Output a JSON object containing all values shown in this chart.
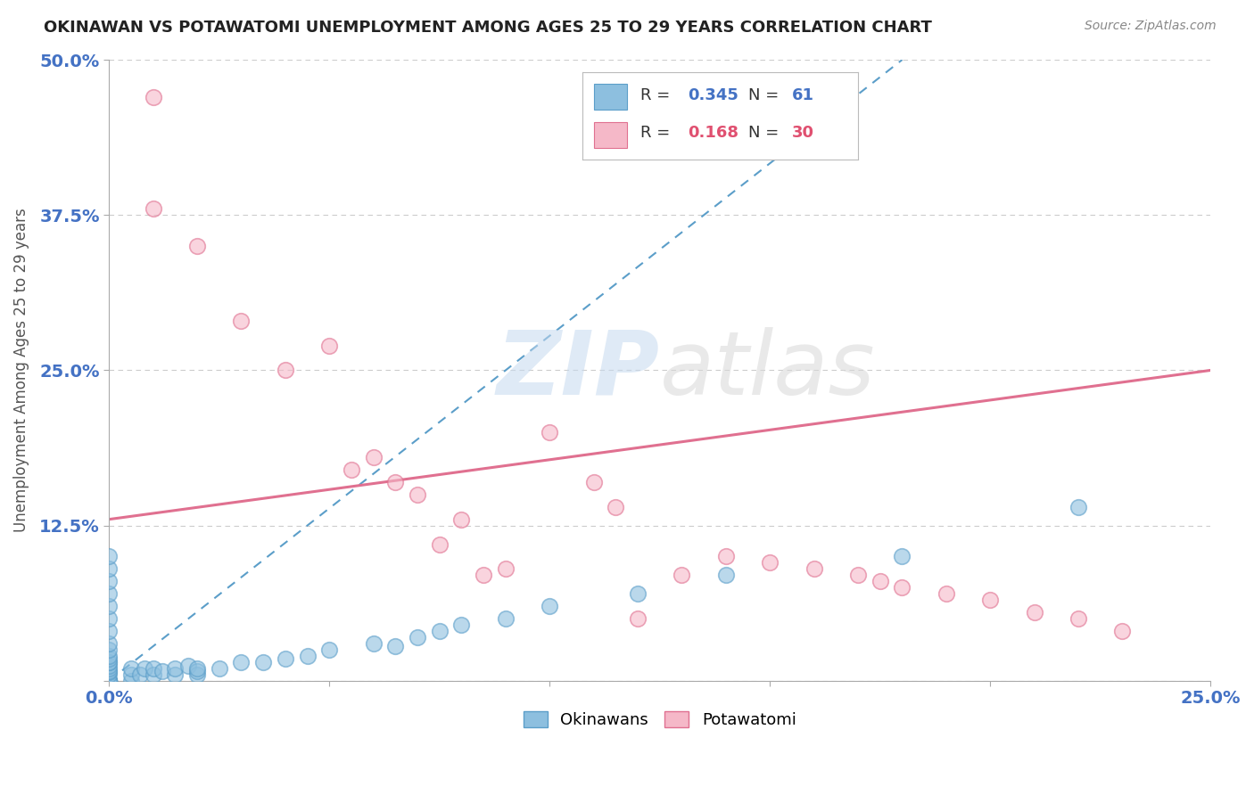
{
  "title": "OKINAWAN VS POTAWATOMI UNEMPLOYMENT AMONG AGES 25 TO 29 YEARS CORRELATION CHART",
  "source": "Source: ZipAtlas.com",
  "ylabel": "Unemployment Among Ages 25 to 29 years",
  "xlim": [
    0.0,
    0.25
  ],
  "ylim": [
    0.0,
    0.5
  ],
  "xticks": [
    0.0,
    0.05,
    0.1,
    0.15,
    0.2,
    0.25
  ],
  "yticks": [
    0.0,
    0.125,
    0.25,
    0.375,
    0.5
  ],
  "xtick_labels": [
    "0.0%",
    "",
    "",
    "",
    "",
    "25.0%"
  ],
  "ytick_labels": [
    "",
    "12.5%",
    "25.0%",
    "37.5%",
    "50.0%"
  ],
  "okinawan_color": "#8dbfdf",
  "okinawan_edge_color": "#5b9ec9",
  "potawatomi_color": "#f5b8c8",
  "potawatomi_edge_color": "#e07090",
  "okinawan_R": 0.345,
  "okinawan_N": 61,
  "potawatomi_R": 0.168,
  "potawatomi_N": 30,
  "background_color": "#ffffff",
  "grid_color": "#cccccc",
  "title_color": "#222222",
  "axis_label_color": "#555555",
  "tick_color": "#4472c4",
  "watermark_zip_color": "#c5d9ef",
  "watermark_atlas_color": "#d8d8d8",
  "legend_r_color_okinawan": "#4472c4",
  "legend_r_color_potawatomi": "#e05070",
  "okinawan_line_color": "#5b9ec9",
  "potawatomi_line_color": "#e07090",
  "okinawan_points_x": [
    0.0,
    0.0,
    0.0,
    0.0,
    0.0,
    0.0,
    0.0,
    0.0,
    0.0,
    0.0,
    0.0,
    0.0,
    0.0,
    0.0,
    0.0,
    0.0,
    0.0,
    0.0,
    0.0,
    0.0,
    0.0,
    0.0,
    0.0,
    0.0,
    0.0,
    0.0,
    0.0,
    0.0,
    0.0,
    0.0,
    0.005,
    0.005,
    0.005,
    0.007,
    0.008,
    0.01,
    0.01,
    0.012,
    0.015,
    0.015,
    0.018,
    0.02,
    0.02,
    0.02,
    0.025,
    0.03,
    0.035,
    0.04,
    0.045,
    0.05,
    0.06,
    0.065,
    0.07,
    0.075,
    0.08,
    0.09,
    0.1,
    0.12,
    0.14,
    0.18,
    0.22
  ],
  "okinawan_points_y": [
    0.0,
    0.0,
    0.0,
    0.0,
    0.0,
    0.0,
    0.0,
    0.0,
    0.0,
    0.0,
    0.0,
    0.0,
    0.005,
    0.007,
    0.008,
    0.01,
    0.012,
    0.015,
    0.015,
    0.018,
    0.02,
    0.025,
    0.03,
    0.04,
    0.05,
    0.06,
    0.07,
    0.08,
    0.09,
    0.1,
    0.0,
    0.005,
    0.01,
    0.005,
    0.01,
    0.005,
    0.01,
    0.008,
    0.005,
    0.01,
    0.012,
    0.005,
    0.008,
    0.01,
    0.01,
    0.015,
    0.015,
    0.018,
    0.02,
    0.025,
    0.03,
    0.028,
    0.035,
    0.04,
    0.045,
    0.05,
    0.06,
    0.07,
    0.085,
    0.1,
    0.14
  ],
  "potawatomi_points_x": [
    0.01,
    0.01,
    0.02,
    0.03,
    0.04,
    0.05,
    0.055,
    0.06,
    0.065,
    0.07,
    0.075,
    0.08,
    0.085,
    0.09,
    0.1,
    0.11,
    0.115,
    0.12,
    0.13,
    0.14,
    0.15,
    0.16,
    0.17,
    0.175,
    0.18,
    0.19,
    0.2,
    0.21,
    0.22,
    0.23
  ],
  "potawatomi_points_y": [
    0.47,
    0.38,
    0.35,
    0.29,
    0.25,
    0.27,
    0.17,
    0.18,
    0.16,
    0.15,
    0.11,
    0.13,
    0.085,
    0.09,
    0.2,
    0.16,
    0.14,
    0.05,
    0.085,
    0.1,
    0.095,
    0.09,
    0.085,
    0.08,
    0.075,
    0.07,
    0.065,
    0.055,
    0.05,
    0.04
  ],
  "pot_trend_x0": 0.0,
  "pot_trend_y0": 0.13,
  "pot_trend_x1": 0.25,
  "pot_trend_y1": 0.25,
  "ok_trend_x0": 0.0,
  "ok_trend_y0": 0.0,
  "ok_trend_x1": 0.18,
  "ok_trend_y1": 0.5
}
